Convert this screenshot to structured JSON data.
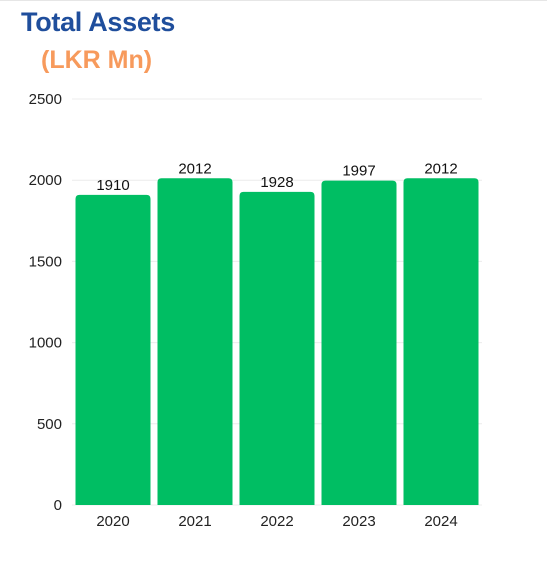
{
  "chart_data": {
    "type": "bar",
    "title": "Total Assets",
    "subtitle": "(LKR Mn)",
    "categories": [
      "2020",
      "2021",
      "2022",
      "2023",
      "2024"
    ],
    "values": [
      1910,
      2012,
      1928,
      1997,
      2012
    ],
    "ylim": [
      0,
      2500
    ],
    "yticks": [
      0,
      500,
      1000,
      1500,
      2000,
      2500
    ],
    "bar_color": "#00be63",
    "grid": true,
    "legend": "none"
  }
}
